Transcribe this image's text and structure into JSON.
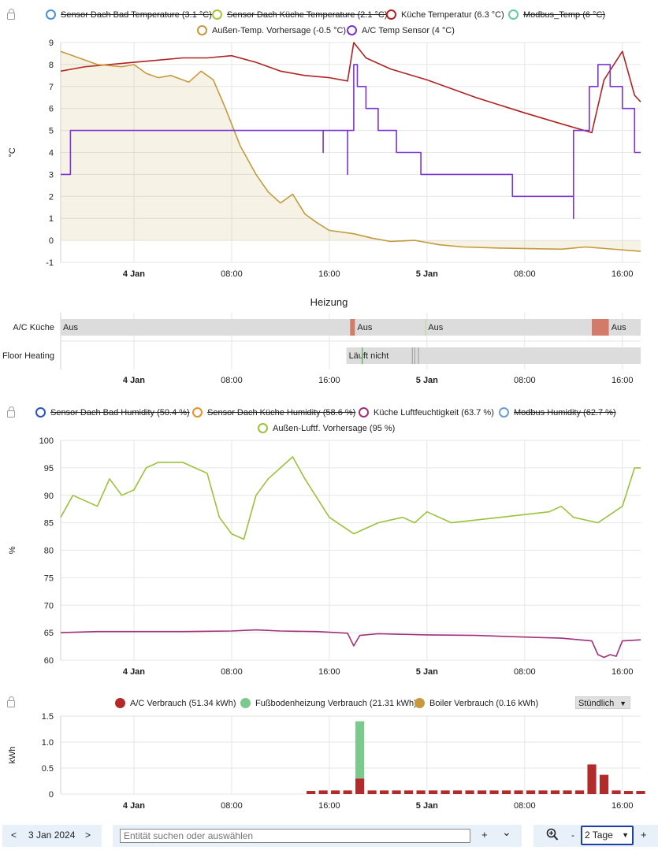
{
  "charts": [
    {
      "legend": [
        {
          "label": "Sensor Dach Bad Temperature (3.1 °C)",
          "color": "#4a90d9",
          "hidden": true
        },
        {
          "label": "Sensor Dach Küche Temperature (2.1 °C)",
          "color": "#a4c639",
          "hidden": true
        },
        {
          "label": "Küche Temperatur (6.3 °C)",
          "color": "#b22222",
          "hidden": false
        },
        {
          "label": "Modbus_Temp (6 °C)",
          "color": "#66cc99",
          "hidden": true
        },
        {
          "label": "Außen-Temp. Vorhersage (-0.5 °C)",
          "color": "#c49a3c",
          "hidden": false
        },
        {
          "label": "A/C Temp Sensor (4 °C)",
          "color": "#7b33d6",
          "hidden": false
        }
      ],
      "ylabel": "°C"
    },
    {
      "legend": [
        {
          "label": "Sensor Dach Bad Humidity (50.4 %)",
          "color": "#2855b8",
          "hidden": true
        },
        {
          "label": "Sensor Dach Küche Humidity (58.6 %)",
          "color": "#e8902a",
          "hidden": true
        },
        {
          "label": "Küche Luftfeuchtigkeit (63.7 %)",
          "color": "#a0307a",
          "hidden": false
        },
        {
          "label": "Modbus Humidity (62.7 %)",
          "color": "#6a9fd0",
          "hidden": true
        },
        {
          "label": "Außen-Luftf. Vorhersage (95 %)",
          "color": "#9ac33a",
          "hidden": false
        }
      ],
      "ylabel": "%"
    },
    {
      "legend": [
        {
          "label": "A/C Verbrauch (51.34 kWh)",
          "color": "#b22a2a",
          "hidden": false
        },
        {
          "label": "Fußbodenheizung Verbrauch (21.31 kWh)",
          "color": "#7bc98c",
          "hidden": false
        },
        {
          "label": "Boiler Verbrauch (0.16 kWh)",
          "color": "#c49a3c",
          "hidden": false
        }
      ],
      "ylabel": "kWh",
      "period_select": "Stündlich"
    }
  ],
  "x_ticks": [
    "4 Jan",
    "08:00",
    "16:00",
    "5 Jan",
    "08:00",
    "16:00"
  ],
  "timeline": {
    "title": "Heizung",
    "rows": [
      {
        "label": "A/C Küche",
        "states": [
          "Aus",
          "Aus",
          "Aus",
          "Aus"
        ]
      },
      {
        "label": "Floor Heating",
        "states": [
          "Läuft nicht"
        ]
      }
    ]
  },
  "footer": {
    "prev": "<",
    "date": "3 Jan 2024",
    "next": ">",
    "search_placeholder": "Entität suchen oder auswählen",
    "plus": "+",
    "chevron": "⌄",
    "zoom_minus": "-",
    "range": "2 Tage",
    "zoom_plus": "+"
  },
  "chart_data": [
    {
      "type": "line",
      "x_unit": "hours since 4 Jan 00:00",
      "xlim": [
        -6,
        41.5
      ],
      "ylim": [
        -1,
        9
      ],
      "yticks": [
        -1,
        0,
        1,
        2,
        3,
        4,
        5,
        6,
        7,
        8,
        9
      ],
      "ylabel": "°C",
      "series": [
        {
          "name": "Küche Temperatur (6.3 °C)",
          "color": "#b22222",
          "values": [
            [
              -6,
              7.7
            ],
            [
              -4,
              7.9
            ],
            [
              -2,
              8.0
            ],
            [
              0,
              8.1
            ],
            [
              2,
              8.2
            ],
            [
              4,
              8.3
            ],
            [
              6,
              8.3
            ],
            [
              8,
              8.4
            ],
            [
              10,
              8.1
            ],
            [
              12,
              7.7
            ],
            [
              14,
              7.5
            ],
            [
              16,
              7.4
            ],
            [
              17.5,
              7.25
            ],
            [
              18,
              9.0
            ],
            [
              19,
              8.3
            ],
            [
              21,
              7.8
            ],
            [
              24,
              7.3
            ],
            [
              28,
              6.5
            ],
            [
              32,
              5.8
            ],
            [
              35,
              5.3
            ],
            [
              37.5,
              4.9
            ],
            [
              38.5,
              7.3
            ],
            [
              40,
              8.6
            ],
            [
              41,
              6.6
            ],
            [
              41.5,
              6.3
            ]
          ]
        },
        {
          "name": "Außen-Temp. Vorhersage (-0.5 °C)",
          "color": "#c49a3c",
          "area": true,
          "values": [
            [
              -6,
              8.6
            ],
            [
              -5,
              8.4
            ],
            [
              -3,
              8.0
            ],
            [
              -1,
              7.9
            ],
            [
              0,
              8.0
            ],
            [
              1,
              7.6
            ],
            [
              2,
              7.4
            ],
            [
              3,
              7.5
            ],
            [
              4.5,
              7.2
            ],
            [
              5.5,
              7.7
            ],
            [
              6.5,
              7.3
            ],
            [
              7.5,
              6.0
            ],
            [
              8.7,
              4.3
            ],
            [
              10,
              3.0
            ],
            [
              11,
              2.2
            ],
            [
              12,
              1.7
            ],
            [
              12.5,
              1.9
            ],
            [
              13,
              2.1
            ],
            [
              14,
              1.2
            ],
            [
              15,
              0.8
            ],
            [
              16,
              0.45
            ],
            [
              18,
              0.3
            ],
            [
              19.5,
              0.1
            ],
            [
              21,
              -0.05
            ],
            [
              23,
              0.0
            ],
            [
              25,
              -0.2
            ],
            [
              27,
              -0.3
            ],
            [
              30,
              -0.35
            ],
            [
              35,
              -0.4
            ],
            [
              37,
              -0.3
            ],
            [
              41.5,
              -0.5
            ]
          ]
        },
        {
          "name": "A/C Temp Sensor (4 °C)",
          "color": "#7b33d6",
          "step": true,
          "values": [
            [
              -6,
              3
            ],
            [
              -5.2,
              5
            ],
            [
              15.5,
              4
            ],
            [
              15.5,
              5
            ],
            [
              17.5,
              3
            ],
            [
              17.5,
              5
            ],
            [
              18,
              8
            ],
            [
              18.3,
              7
            ],
            [
              19,
              6
            ],
            [
              20,
              5
            ],
            [
              21.5,
              4
            ],
            [
              23.5,
              3
            ],
            [
              31,
              2
            ],
            [
              36,
              1
            ],
            [
              36,
              5
            ],
            [
              37.3,
              7
            ],
            [
              38,
              8
            ],
            [
              39,
              7
            ],
            [
              40,
              6
            ],
            [
              41,
              4
            ]
          ]
        }
      ]
    },
    {
      "type": "timeline",
      "title": "Heizung",
      "rows": [
        {
          "label": "A/C Küche",
          "segments": [
            {
              "start": -6,
              "end": 17.7,
              "state": "Aus"
            },
            {
              "start": 17.7,
              "end": 18.1,
              "state": "an"
            },
            {
              "start": 18.1,
              "end": 23.9,
              "state": "Aus"
            },
            {
              "start": 23.9,
              "end": 37.5,
              "state": "Aus"
            },
            {
              "start": 37.5,
              "end": 38.9,
              "state": "an"
            },
            {
              "start": 38.9,
              "end": 41.5,
              "state": "Aus"
            }
          ]
        },
        {
          "label": "Floor Heating",
          "segments": [
            {
              "start": 17.4,
              "end": 41.5,
              "state": "Läuft nicht"
            }
          ]
        }
      ]
    },
    {
      "type": "line",
      "x_unit": "hours since 4 Jan 00:00",
      "xlim": [
        -6,
        41.5
      ],
      "ylim": [
        60,
        100
      ],
      "yticks": [
        60,
        65,
        70,
        75,
        80,
        85,
        90,
        95,
        100
      ],
      "ylabel": "%",
      "series": [
        {
          "name": "Außen-Luftf. Vorhersage (95 %)",
          "color": "#9ac33a",
          "values": [
            [
              -6,
              86
            ],
            [
              -5,
              90
            ],
            [
              -4,
              89
            ],
            [
              -3,
              88
            ],
            [
              -2,
              93
            ],
            [
              -1,
              90
            ],
            [
              0,
              91
            ],
            [
              1,
              95
            ],
            [
              2,
              96
            ],
            [
              4,
              96
            ],
            [
              6,
              94
            ],
            [
              7,
              86
            ],
            [
              8,
              83
            ],
            [
              9,
              82
            ],
            [
              10,
              90
            ],
            [
              11,
              93
            ],
            [
              12,
              95
            ],
            [
              13,
              97
            ],
            [
              14,
              93
            ],
            [
              16,
              86
            ],
            [
              18,
              83
            ],
            [
              20,
              85
            ],
            [
              22,
              86
            ],
            [
              23,
              85
            ],
            [
              24,
              87
            ],
            [
              26,
              85
            ],
            [
              30,
              86
            ],
            [
              34,
              87
            ],
            [
              35,
              88
            ],
            [
              36,
              86
            ],
            [
              38,
              85
            ],
            [
              40,
              88
            ],
            [
              41,
              95
            ],
            [
              41.5,
              95
            ]
          ]
        },
        {
          "name": "Küche Luftfeuchtigkeit (63.7 %)",
          "color": "#a0307a",
          "values": [
            [
              -6,
              65
            ],
            [
              -3,
              65.2
            ],
            [
              0,
              65.2
            ],
            [
              4,
              65.2
            ],
            [
              8,
              65.3
            ],
            [
              10,
              65.5
            ],
            [
              12,
              65.3
            ],
            [
              15,
              65.2
            ],
            [
              17.5,
              64.9
            ],
            [
              18,
              62.6
            ],
            [
              18.5,
              64.5
            ],
            [
              20,
              64.8
            ],
            [
              24,
              64.6
            ],
            [
              28,
              64.5
            ],
            [
              32,
              64.2
            ],
            [
              35,
              64
            ],
            [
              37.5,
              63.5
            ],
            [
              38,
              61
            ],
            [
              38.5,
              60.5
            ],
            [
              39,
              61
            ],
            [
              39.5,
              60.7
            ],
            [
              40,
              63.5
            ],
            [
              41.5,
              63.7
            ]
          ]
        }
      ]
    },
    {
      "type": "bar",
      "x_unit": "hours since 4 Jan 00:00",
      "xlim": [
        -6,
        41.5
      ],
      "ylim": [
        0,
        1.5
      ],
      "yticks": [
        0,
        0.5,
        1.0,
        1.5
      ],
      "ylabel": "kWh",
      "series": [
        {
          "name": "A/C Verbrauch (51.34 kWh)",
          "color": "#b22a2a",
          "x": [
            14.5,
            15.5,
            16.5,
            17.5,
            18.5,
            19.5,
            20.5,
            21.5,
            22.5,
            23.5,
            24.5,
            25.5,
            26.5,
            27.5,
            28.5,
            29.5,
            30.5,
            31.5,
            32.5,
            33.5,
            34.5,
            35.5,
            36.5,
            37.5,
            38.5,
            39.5,
            40.5,
            41.5
          ],
          "values": [
            0.06,
            0.07,
            0.07,
            0.07,
            0.3,
            0.07,
            0.07,
            0.07,
            0.07,
            0.07,
            0.07,
            0.07,
            0.07,
            0.07,
            0.07,
            0.07,
            0.07,
            0.07,
            0.07,
            0.07,
            0.07,
            0.07,
            0.07,
            0.57,
            0.37,
            0.07,
            0.06,
            0.06
          ]
        },
        {
          "name": "Fußbodenheizung Verbrauch (21.31 kWh)",
          "color": "#7bc98c",
          "x": [
            18.5
          ],
          "values": [
            1.1
          ]
        },
        {
          "name": "Boiler Verbrauch (0.16 kWh)",
          "color": "#c49a3c",
          "x": [],
          "values": []
        }
      ]
    }
  ]
}
